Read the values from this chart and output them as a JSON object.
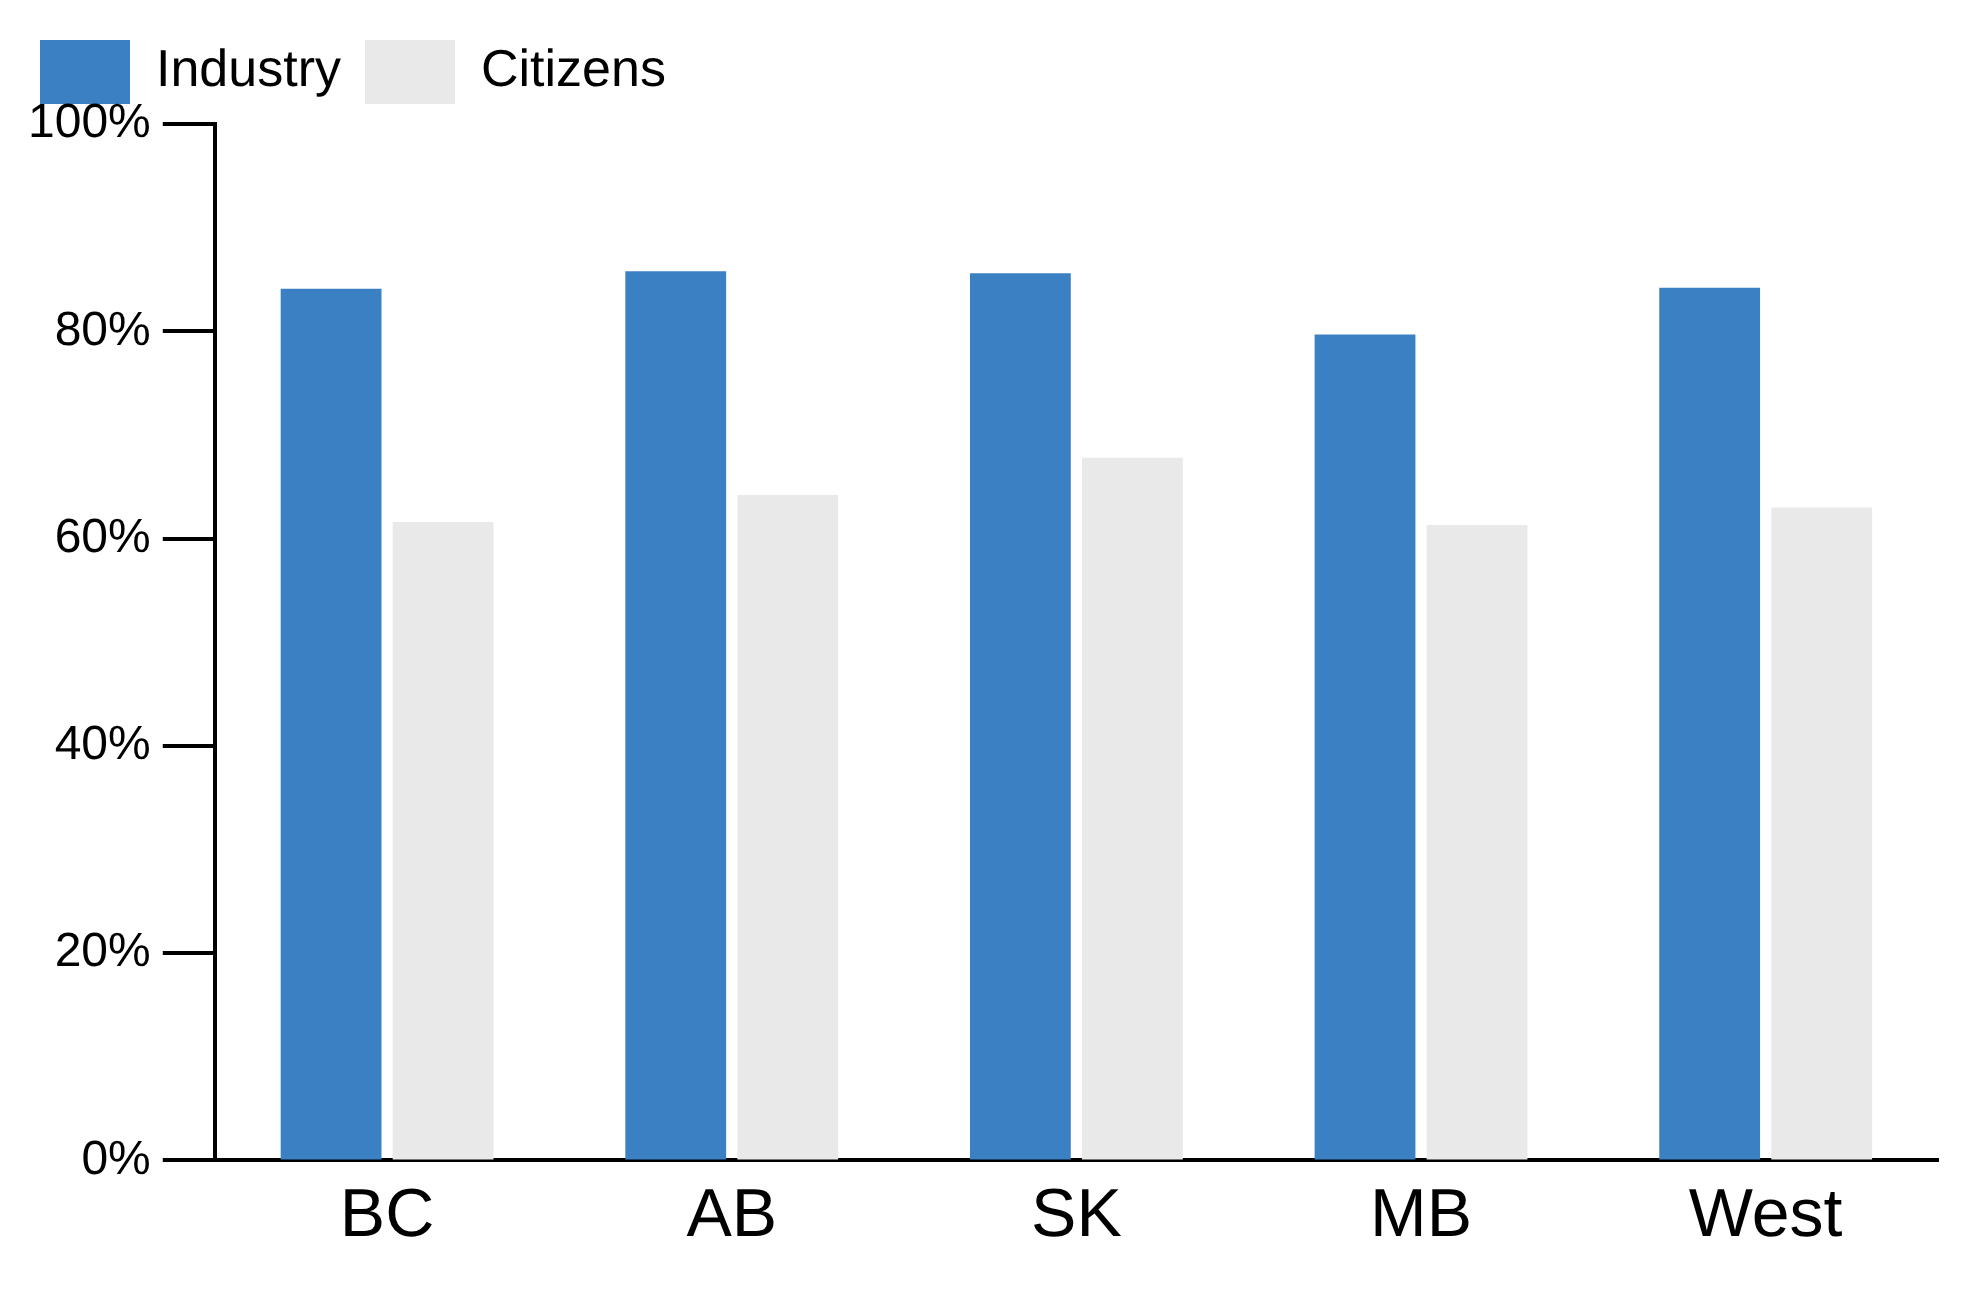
{
  "chart_data": {
    "type": "bar",
    "categories": [
      "BC",
      "AB",
      "SK",
      "MB",
      "West"
    ],
    "series": [
      {
        "name": "Industry",
        "color": "#3b80c3",
        "values": [
          84.1,
          85.8,
          85.6,
          79.7,
          84.2
        ]
      },
      {
        "name": "Citizens",
        "color": "#e9e9e9",
        "values": [
          61.6,
          64.2,
          67.8,
          61.3,
          63.0
        ]
      }
    ],
    "ylim": [
      0,
      100
    ],
    "yticks": [
      {
        "value": 0,
        "label": "0%"
      },
      {
        "value": 20,
        "label": "20%"
      },
      {
        "value": 40,
        "label": "40%"
      },
      {
        "value": 60,
        "label": "60%"
      },
      {
        "value": 80,
        "label": "80%"
      },
      {
        "value": 100,
        "label": "100%"
      }
    ],
    "grid": false,
    "legend": "top left"
  }
}
